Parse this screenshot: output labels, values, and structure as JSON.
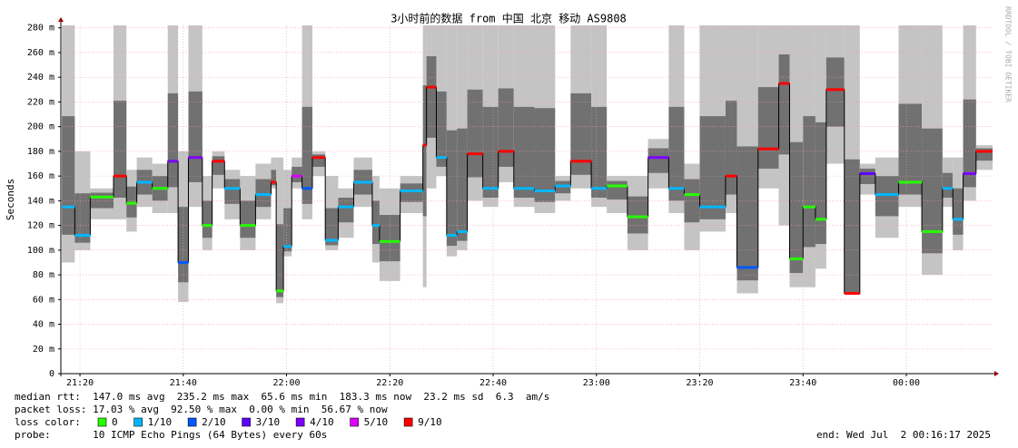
{
  "chart_data": {
    "type": "smokeping",
    "title": "3小时前的数据 from 中国 北京 移动 AS9808",
    "y_label": "Seconds",
    "watermark": "RRDTOOL / TOBI OETIKER",
    "xlim": [
      16.3,
      196.7
    ],
    "xticks": [
      {
        "value": 20,
        "label": "21:20"
      },
      {
        "value": 40,
        "label": "21:40"
      },
      {
        "value": 60,
        "label": "22:00"
      },
      {
        "value": 80,
        "label": "22:20"
      },
      {
        "value": 100,
        "label": "22:40"
      },
      {
        "value": 120,
        "label": "23:00"
      },
      {
        "value": 140,
        "label": "23:20"
      },
      {
        "value": 160,
        "label": "23:40"
      },
      {
        "value": 180,
        "label": "00:00"
      }
    ],
    "ylim": [
      0,
      282
    ],
    "yticks": [
      0,
      {
        "value": 20,
        "label": "20 m"
      },
      {
        "value": 40,
        "label": "40 m"
      },
      {
        "value": 60,
        "label": "60 m"
      },
      {
        "value": 80,
        "label": "80 m"
      },
      {
        "value": 100,
        "label": "100 m"
      },
      {
        "value": 120,
        "label": "120 m"
      },
      {
        "value": 140,
        "label": "140 m"
      },
      {
        "value": 160,
        "label": "160 m"
      },
      {
        "value": 180,
        "label": "180 m"
      },
      {
        "value": 200,
        "label": "200 m"
      },
      {
        "value": 220,
        "label": "220 m"
      },
      {
        "value": 240,
        "label": "240 m"
      },
      {
        "value": 260,
        "label": "260 m"
      },
      {
        "value": 280,
        "label": "280 m"
      }
    ],
    "grid": true,
    "smoke_color": "#c4c4c4",
    "x": [
      16.5,
      19,
      22,
      26.5,
      29,
      31,
      34,
      37,
      39,
      41,
      43.7,
      45.6,
      48,
      51,
      54,
      57,
      58,
      59.4,
      61,
      63,
      65,
      67.5,
      70,
      73,
      76.6,
      78,
      82,
      86.4,
      87.1,
      89,
      91,
      93,
      95,
      98,
      101,
      104,
      108,
      112,
      115,
      119,
      122,
      126,
      130,
      134,
      137,
      140,
      145,
      147.2,
      151.3,
      155.3,
      157.4,
      160,
      162.4,
      164.5,
      168,
      171,
      174,
      178.5,
      183,
      187,
      189,
      191,
      193.5
    ],
    "median": [
      135,
      112,
      143,
      160,
      138,
      155,
      150,
      172,
      90,
      175,
      120,
      172,
      150,
      120,
      145,
      155,
      67,
      103,
      160,
      150,
      175,
      108,
      135,
      155,
      120,
      107,
      148,
      185,
      232,
      175,
      112,
      115,
      178,
      150,
      180,
      150,
      148,
      152,
      172,
      150,
      152,
      127,
      175,
      150,
      145,
      135,
      160,
      86,
      182,
      235,
      93,
      135,
      125,
      230,
      65,
      162,
      145,
      155,
      115,
      150,
      125,
      162,
      180
    ],
    "min": [
      90,
      100,
      125,
      125,
      115,
      135,
      130,
      130,
      58,
      135,
      100,
      150,
      125,
      100,
      125,
      150,
      57,
      95,
      150,
      125,
      160,
      100,
      110,
      135,
      90,
      75,
      130,
      70,
      150,
      160,
      95,
      100,
      140,
      135,
      155,
      135,
      130,
      140,
      150,
      135,
      130,
      100,
      150,
      130,
      100,
      115,
      130,
      65,
      150,
      120,
      70,
      70,
      85,
      170,
      65,
      145,
      110,
      135,
      80,
      135,
      100,
      140,
      165
    ],
    "max": [
      282,
      180,
      150,
      282,
      165,
      175,
      170,
      282,
      180,
      282,
      160,
      180,
      165,
      160,
      170,
      175,
      175,
      165,
      175,
      282,
      180,
      160,
      150,
      175,
      160,
      150,
      160,
      282,
      282,
      282,
      282,
      282,
      282,
      282,
      282,
      282,
      282,
      160,
      282,
      282,
      160,
      160,
      190,
      282,
      170,
      282,
      282,
      282,
      282,
      282,
      282,
      282,
      282,
      282,
      282,
      170,
      175,
      282,
      282,
      175,
      175,
      282,
      185
    ],
    "loss": [
      "1/10",
      "1/10",
      "0",
      "9/10",
      "0",
      "1/10",
      "0",
      "4/10",
      "2/10",
      "4/10",
      "0",
      "9/10",
      "1/10",
      "0",
      "1/10",
      "9/10",
      "0",
      "1/10",
      "5/10",
      "2/10",
      "9/10",
      "1/10",
      "1/10",
      "1/10",
      "1/10",
      "0",
      "1/10",
      "9/10",
      "9/10",
      "1/10",
      "1/10",
      "1/10",
      "9/10",
      "1/10",
      "9/10",
      "1/10",
      "1/10",
      "1/10",
      "9/10",
      "1/10",
      "0",
      "0",
      "4/10",
      "1/10",
      "0",
      "1/10",
      "9/10",
      "2/10",
      "9/10",
      "9/10",
      "0",
      "0",
      "0",
      "9/10",
      "9/10",
      "3/10",
      "1/10",
      "0",
      "0",
      "1/10",
      "1/10",
      "4/10",
      "9/10"
    ],
    "legend": {
      "median_line": "median rtt:  147.0 ms avg  235.2 ms max  65.6 ms min  183.3 ms now  23.2 ms sd  6.3  am/s",
      "loss_line": "packet loss: 17.03 % avg  92.50 % max  0.00 % min  56.67 % now",
      "loss_label": "loss color:",
      "loss_colors": [
        {
          "name": "0",
          "color": "#26ff00"
        },
        {
          "name": "1/10",
          "color": "#00b8ff"
        },
        {
          "name": "2/10",
          "color": "#0059ff"
        },
        {
          "name": "3/10",
          "color": "#5e00ff"
        },
        {
          "name": "4/10",
          "color": "#7e00ff"
        },
        {
          "name": "5/10",
          "color": "#dd00ff"
        },
        {
          "name": "9/10",
          "color": "#ff0000"
        }
      ],
      "probe": "probe:       10 ICMP Echo Pings (64 Bytes) every 60s",
      "end": "end: Wed Jul  2 00:16:17 2025"
    }
  }
}
